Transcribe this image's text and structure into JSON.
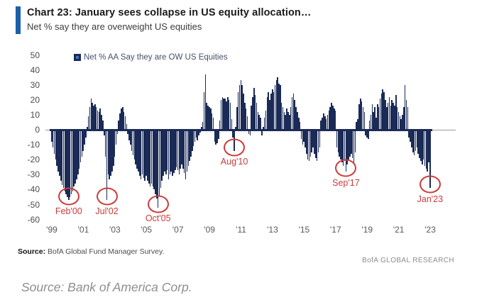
{
  "header": {
    "title": "Chart 23: January sees collapse in US equity allocation…",
    "subtitle": "Net % say they are overweight US equities"
  },
  "legend": {
    "label": "Net % AA Say they are OW US Equities"
  },
  "chart_data": {
    "type": "bar",
    "title": "Chart 23: January sees collapse in US equity allocation…",
    "subtitle": "Net % say they are overweight US equities",
    "series_name": "Net % AA Say they are OW US Equities",
    "frequency": "monthly",
    "x_start": "1999-01",
    "x_end": "2023-01",
    "ylim": [
      -60,
      50
    ],
    "grid": false,
    "legend_position": "top-left",
    "y_ticks": [
      "50",
      "40",
      "30",
      "20",
      "10",
      "0",
      "-10",
      "-20",
      "-30",
      "-40",
      "-50",
      "-60"
    ],
    "y_tick_values": [
      50,
      40,
      30,
      20,
      10,
      0,
      -10,
      -20,
      -30,
      -40,
      -50,
      -60
    ],
    "x_tick_labels": [
      "'99",
      "'01",
      "'03",
      "'05",
      "'07",
      "'09",
      "'11",
      "'13",
      "'15",
      "'17",
      "'19",
      "'21",
      "'23"
    ],
    "values": [
      -8,
      -12,
      -16,
      -20,
      -24,
      -28,
      -31,
      -34,
      -37,
      -39,
      -41,
      -43,
      -45,
      -47,
      -45,
      -43,
      -41,
      -38,
      -36,
      -33,
      -30,
      -26,
      -22,
      -18,
      -14,
      -10,
      -5,
      2,
      9,
      15,
      21,
      18,
      16,
      17,
      15,
      13,
      12,
      14,
      10,
      6,
      -4,
      -18,
      -47,
      -30,
      -33,
      -31,
      -28,
      -24,
      -18,
      -10,
      -3,
      6,
      11,
      14,
      15,
      12,
      9,
      4,
      -3,
      -7,
      -10,
      -14,
      -17,
      -20,
      -23,
      -26,
      -28,
      -31,
      -33,
      -30,
      -32,
      -34,
      -31,
      -34,
      -36,
      -38,
      -36,
      -38,
      -40,
      -43,
      -46,
      -52,
      -44,
      -39,
      -34,
      -31,
      -28,
      -30,
      -27,
      -33,
      -30,
      -28,
      -31,
      -29,
      -27,
      -25,
      -27,
      -30,
      -26,
      -23,
      -26,
      -29,
      -33,
      -28,
      -24,
      -21,
      -18,
      -14,
      -11,
      -8,
      -5,
      -7,
      -4,
      -2,
      2,
      5,
      25,
      37,
      18,
      16,
      15,
      14,
      11,
      8,
      -8,
      -10,
      -9,
      -6,
      6,
      20,
      22,
      21,
      21,
      19,
      22,
      20,
      18,
      7,
      -5,
      -14,
      2,
      15,
      25,
      30,
      33,
      30,
      24,
      18,
      14,
      9,
      -3,
      -4,
      16,
      22,
      28,
      23,
      18,
      12,
      10,
      8,
      -4,
      2,
      8,
      13,
      22,
      25,
      20,
      24,
      27,
      25,
      30,
      33,
      35,
      31,
      30,
      18,
      15,
      12,
      10,
      14,
      12,
      10,
      15,
      22,
      24,
      20,
      15,
      12,
      8,
      5,
      -6,
      -10,
      -8,
      -12,
      -16,
      -20,
      -21,
      -18,
      -15,
      -12,
      -16,
      -19,
      -21,
      -15,
      -12,
      6,
      8,
      11,
      9,
      7,
      10,
      13,
      15,
      18,
      16,
      14,
      13,
      -12,
      -15,
      -18,
      -20,
      -22,
      -24,
      -21,
      -28,
      -23,
      -20,
      -18,
      -16,
      -19,
      -22,
      -15,
      5,
      7,
      17,
      21,
      19,
      15,
      12,
      -4,
      -5,
      -6,
      6,
      10,
      17,
      12,
      15,
      8,
      17,
      15,
      21,
      24,
      27,
      25,
      20,
      15,
      18,
      22,
      16,
      20,
      18,
      16,
      23,
      15,
      12,
      9,
      7,
      10,
      15,
      30,
      20,
      15,
      -5,
      -8,
      -12,
      -15,
      -17,
      -14,
      -12,
      -16,
      -19,
      -21,
      -23,
      -20,
      -24,
      -26,
      -28,
      -22,
      -39
    ],
    "annotations": [
      {
        "label": "Feb'00",
        "month_index": 13,
        "value": -47
      },
      {
        "label": "Jul'02",
        "month_index": 42,
        "value": -47
      },
      {
        "label": "Oct'05",
        "month_index": 81,
        "value": -52
      },
      {
        "label": "Aug'10",
        "month_index": 139,
        "value": -14
      },
      {
        "label": "Sep'17",
        "month_index": 224,
        "value": -28
      },
      {
        "label": "Jan'23",
        "month_index": 288,
        "value": -39
      }
    ]
  },
  "footer": {
    "source_label": "Source:",
    "source_text": " BofA Global Fund Manager Survey.",
    "brand": "BofA GLOBAL RESEARCH"
  },
  "caption": "Source: Bank of America Corp.",
  "colors": {
    "bar": "#1b2b57",
    "annotation": "#cc3a3a",
    "accent_bar": "#1b5fa9",
    "axis_text": "#595959",
    "zero_line_gray": "#9a9a9a"
  }
}
